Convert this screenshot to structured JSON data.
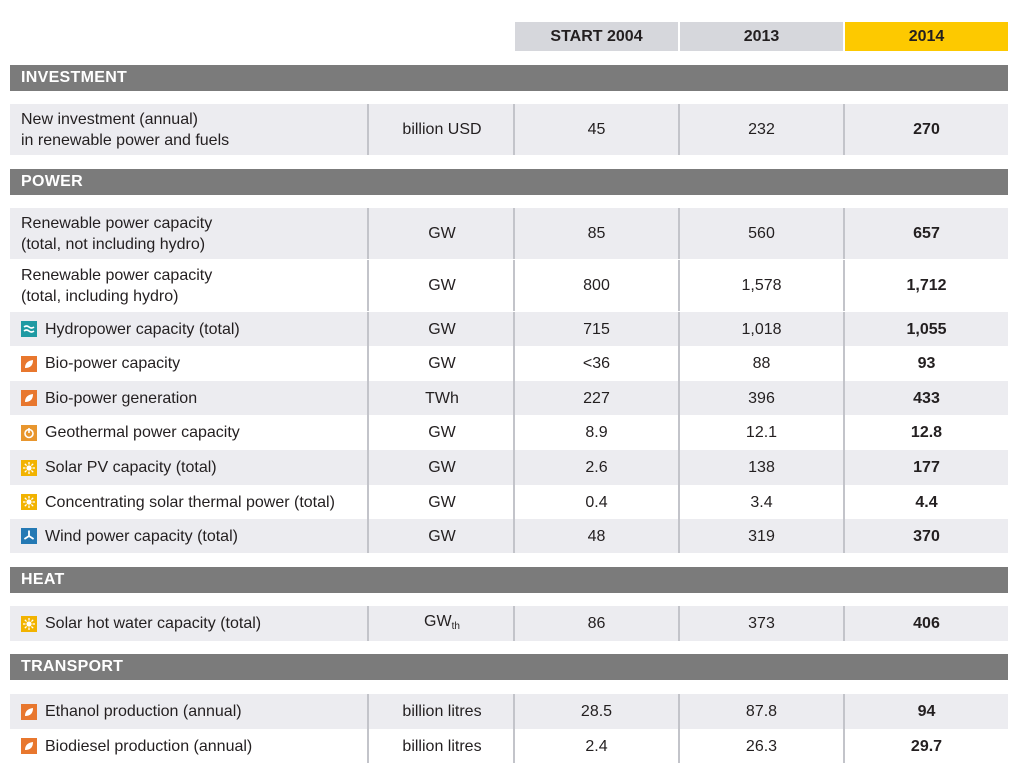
{
  "header": {
    "columns": [
      "START 2004",
      "2013",
      "2014"
    ]
  },
  "sections": [
    {
      "title": "INVESTMENT",
      "rows": [
        {
          "label": "New investment (annual)\nin renewable power and fuels",
          "unit": "billion USD",
          "values": [
            "45",
            "232",
            "270"
          ]
        }
      ]
    },
    {
      "title": "POWER",
      "rows": [
        {
          "label": "Renewable power capacity\n(total, not including hydro)",
          "unit": "GW",
          "values": [
            "85",
            "560",
            "657"
          ]
        },
        {
          "label": "Renewable power capacity\n(total, including hydro)",
          "unit": "GW",
          "values": [
            "800",
            "1,578",
            "1,712"
          ]
        },
        {
          "label": "Hydropower capacity (total)",
          "unit": "GW",
          "values": [
            "715",
            "1,018",
            "1,055"
          ]
        },
        {
          "label": "Bio-power capacity",
          "unit": "GW",
          "values": [
            "<36",
            "88",
            "93"
          ]
        },
        {
          "label": "Bio-power generation",
          "unit": "TWh",
          "values": [
            "227",
            "396",
            "433"
          ]
        },
        {
          "label": "Geothermal power capacity",
          "unit": "GW",
          "values": [
            "8.9",
            "12.1",
            "12.8"
          ]
        },
        {
          "label": "Solar PV capacity (total)",
          "unit": "GW",
          "values": [
            "2.6",
            "138",
            "177"
          ]
        },
        {
          "label": "Concentrating solar thermal power (total)",
          "unit": "GW",
          "values": [
            "0.4",
            "3.4",
            "4.4"
          ]
        },
        {
          "label": "Wind power capacity (total)",
          "unit": "GW",
          "values": [
            "48",
            "319",
            "370"
          ]
        }
      ]
    },
    {
      "title": "HEAT",
      "rows": [
        {
          "label": "Solar hot water capacity (total)",
          "unit": "GW",
          "unit_sub": "th",
          "values": [
            "86",
            "373",
            "406"
          ]
        }
      ]
    },
    {
      "title": "TRANSPORT",
      "rows": [
        {
          "label": "Ethanol production (annual)",
          "unit": "billion litres",
          "values": [
            "28.5",
            "87.8",
            "94"
          ]
        },
        {
          "label": "Biodiesel production (annual)",
          "unit": "billion litres",
          "values": [
            "2.4",
            "26.3",
            "29.7"
          ]
        }
      ]
    }
  ]
}
